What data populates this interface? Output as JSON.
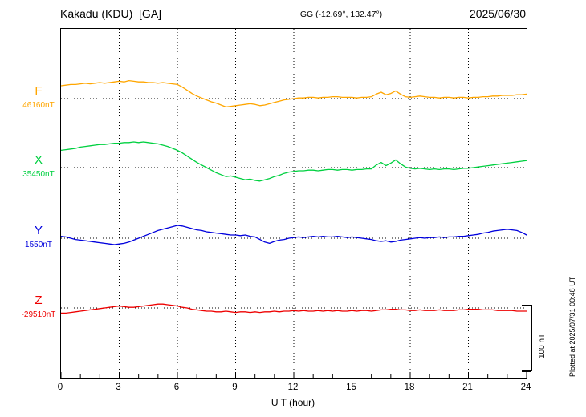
{
  "header": {
    "station": "Kakadu (KDU)  [GA]",
    "coords": "GG (-12.69°, 132.47°)",
    "date": "2025/06/30"
  },
  "scale_bar": {
    "label": "100 nT"
  },
  "footer_note": "Plotted at 2025/07/31 00:48 UT",
  "chart_data": {
    "type": "line",
    "title": "Kakadu (KDU) [GA] magnetogram 2025/06/30",
    "xlabel": "U T (hour)",
    "x_range": [
      0,
      24
    ],
    "x_tick_labels": [
      "0",
      "3",
      "6",
      "9",
      "12",
      "15",
      "18",
      "21",
      "24"
    ],
    "x_step_hours": 0.25,
    "grid": "dotted vertical lines every 3 h, dotted horizontal baseline per trace",
    "legend_position": "left",
    "scale_bar_nT": 100,
    "series": [
      {
        "name": "F",
        "baseline_label": "46160nT",
        "baseline_nT": 46160,
        "color": "#ffa600",
        "offsets_nT": [
          20,
          21,
          22,
          22,
          23,
          24,
          23,
          24,
          25,
          24,
          25,
          26,
          27,
          26,
          28,
          27,
          26,
          26,
          25,
          25,
          24,
          25,
          24,
          23,
          22,
          18,
          13,
          8,
          4,
          1,
          -2,
          -5,
          -7,
          -10,
          -13,
          -12,
          -11,
          -10,
          -9,
          -8,
          -9,
          -11,
          -10,
          -8,
          -6,
          -4,
          -2,
          -1,
          0,
          1,
          1,
          2,
          2,
          1,
          2,
          2,
          3,
          3,
          2,
          2,
          2,
          1,
          2,
          2,
          3,
          7,
          10,
          6,
          8,
          12,
          7,
          3,
          2,
          3,
          4,
          3,
          2,
          2,
          1,
          2,
          2,
          1,
          2,
          2,
          1,
          2,
          2,
          3,
          3,
          4,
          4,
          5,
          5,
          5,
          6,
          6,
          7
        ]
      },
      {
        "name": "X",
        "baseline_label": "35450nT",
        "baseline_nT": 35450,
        "color": "#00d040",
        "offsets_nT": [
          27,
          28,
          29,
          30,
          32,
          33,
          34,
          35,
          36,
          36,
          37,
          38,
          38,
          39,
          39,
          40,
          39,
          40,
          39,
          38,
          37,
          35,
          33,
          30,
          27,
          23,
          18,
          13,
          8,
          4,
          0,
          -4,
          -8,
          -11,
          -14,
          -13,
          -15,
          -17,
          -19,
          -18,
          -20,
          -21,
          -19,
          -17,
          -14,
          -12,
          -9,
          -7,
          -6,
          -5,
          -5,
          -4,
          -4,
          -5,
          -4,
          -3,
          -3,
          -4,
          -3,
          -3,
          -4,
          -3,
          -3,
          -2,
          -2,
          4,
          8,
          3,
          7,
          12,
          6,
          1,
          -1,
          -2,
          -1,
          -2,
          -3,
          -2,
          -3,
          -2,
          -2,
          -3,
          -2,
          -1,
          -1,
          0,
          1,
          2,
          3,
          4,
          5,
          6,
          7,
          8,
          9,
          10,
          11
        ]
      },
      {
        "name": "Y",
        "baseline_label": "1550nT",
        "baseline_nT": 1550,
        "color": "#0000dd",
        "offsets_nT": [
          3,
          2,
          0,
          -2,
          -3,
          -4,
          -5,
          -6,
          -7,
          -8,
          -9,
          -10,
          -9,
          -8,
          -6,
          -3,
          0,
          3,
          6,
          9,
          12,
          14,
          16,
          18,
          20,
          19,
          17,
          15,
          13,
          12,
          10,
          9,
          8,
          7,
          6,
          5,
          5,
          4,
          5,
          3,
          2,
          -2,
          -6,
          -8,
          -5,
          -3,
          -2,
          0,
          1,
          2,
          1,
          2,
          3,
          2,
          3,
          2,
          2,
          3,
          2,
          1,
          2,
          1,
          0,
          -1,
          -2,
          -4,
          -5,
          -4,
          -6,
          -5,
          -3,
          -2,
          -1,
          0,
          1,
          0,
          1,
          1,
          2,
          1,
          2,
          2,
          3,
          3,
          4,
          5,
          6,
          8,
          9,
          11,
          12,
          13,
          14,
          13,
          12,
          9,
          5
        ]
      },
      {
        "name": "Z",
        "baseline_label": "-29510nT",
        "baseline_nT": -29510,
        "color": "#ee0000",
        "offsets_nT": [
          -8,
          -8,
          -7,
          -6,
          -5,
          -4,
          -3,
          -2,
          -1,
          0,
          1,
          2,
          3,
          2,
          1,
          1,
          2,
          3,
          4,
          5,
          6,
          6,
          5,
          4,
          3,
          1,
          0,
          -2,
          -3,
          -4,
          -5,
          -5,
          -6,
          -6,
          -5,
          -6,
          -7,
          -6,
          -6,
          -7,
          -6,
          -7,
          -6,
          -6,
          -5,
          -6,
          -5,
          -5,
          -4,
          -5,
          -4,
          -5,
          -5,
          -4,
          -5,
          -4,
          -5,
          -4,
          -5,
          -5,
          -4,
          -5,
          -4,
          -4,
          -5,
          -4,
          -3,
          -3,
          -2,
          -2,
          -3,
          -3,
          -4,
          -4,
          -3,
          -4,
          -4,
          -4,
          -3,
          -4,
          -4,
          -4,
          -3,
          -3,
          -2,
          -2,
          -2,
          -3,
          -3,
          -3,
          -4,
          -4,
          -4,
          -4,
          -5,
          -5,
          -5
        ]
      }
    ]
  }
}
